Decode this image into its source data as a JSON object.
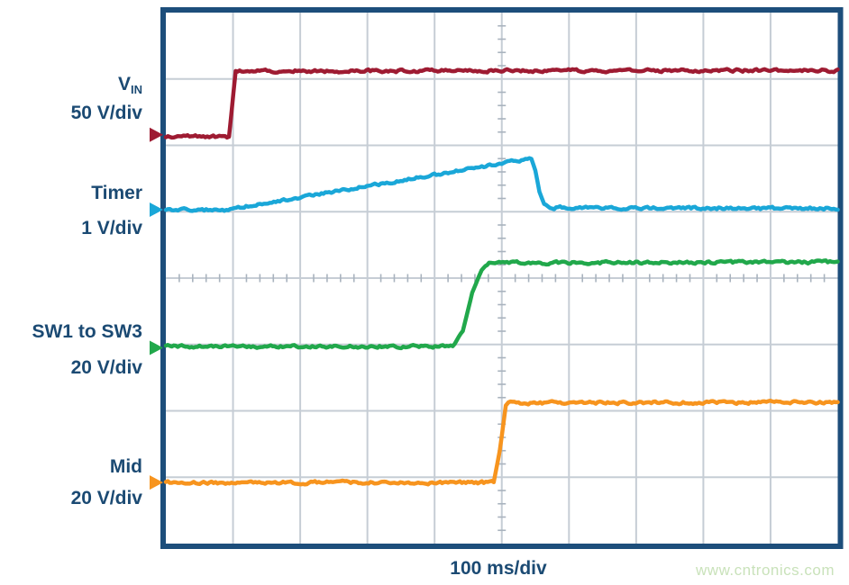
{
  "watermark": "www.cntronics.com",
  "chart_data": {
    "type": "line",
    "title": "",
    "subtitle": "",
    "grid": true,
    "x_axis": {
      "label": "100 ms/div",
      "divisions": 10
    },
    "y_axis": {
      "divisions": 8
    },
    "colors": {
      "border": "#1d4e7b",
      "gridline": "#c6cdd5",
      "tick": "#a9b3be",
      "label_text": "#1b4a73"
    },
    "channels": [
      {
        "id": "vin",
        "label": "V",
        "label_subscript": "IN",
        "scale": "50 V/div",
        "color": "#9e1b32",
        "marker_level_div": 6.16,
        "points_div": [
          [
            0,
            6.13
          ],
          [
            0.94,
            6.13
          ],
          [
            1.04,
            7.12
          ],
          [
            10,
            7.13
          ]
        ]
      },
      {
        "id": "timer",
        "label": "Timer",
        "label_subscript": "",
        "scale": "1 V/div",
        "color": "#1aa7d8",
        "marker_level_div": 5.03,
        "points_div": [
          [
            0,
            5.03
          ],
          [
            0.9,
            5.03
          ],
          [
            5.44,
            5.8
          ],
          [
            5.5,
            5.62
          ],
          [
            5.56,
            5.3
          ],
          [
            5.63,
            5.12
          ],
          [
            5.72,
            5.06
          ],
          [
            10,
            5.05
          ]
        ]
      },
      {
        "id": "sw",
        "label": "SW1 to SW3",
        "label_subscript": "",
        "scale": "20 V/div",
        "color": "#21a84b",
        "marker_level_div": 2.95,
        "points_div": [
          [
            0,
            2.97
          ],
          [
            4.27,
            2.97
          ],
          [
            4.42,
            3.2
          ],
          [
            4.56,
            3.78
          ],
          [
            4.7,
            4.12
          ],
          [
            4.81,
            4.23
          ],
          [
            10,
            4.24
          ]
        ]
      },
      {
        "id": "mid",
        "label": "Mid",
        "label_subscript": "",
        "scale": "20 V/div",
        "color": "#f7941e",
        "marker_level_div": 0.92,
        "points_div": [
          [
            0,
            0.92
          ],
          [
            4.88,
            0.92
          ],
          [
            4.97,
            1.4
          ],
          [
            5.06,
            2.08
          ],
          [
            5.1,
            2.12
          ],
          [
            10,
            2.13
          ]
        ]
      }
    ]
  }
}
